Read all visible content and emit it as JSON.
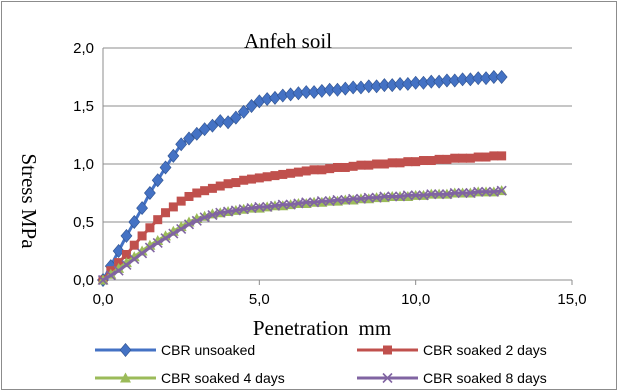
{
  "chart_data": {
    "type": "line",
    "title": "Anfeh soil",
    "xlabel_main": "Penetration",
    "xlabel_unit": "mm",
    "ylabel": "Stress MPa",
    "xlim": [
      0,
      15
    ],
    "ylim": [
      0,
      2
    ],
    "xticks": [
      "0,0",
      "5,0",
      "10,0",
      "15,0"
    ],
    "xtick_values": [
      0,
      5,
      10,
      15
    ],
    "yticks": [
      "0,0",
      "0,5",
      "1,0",
      "1,5",
      "2,0"
    ],
    "ytick_values": [
      0,
      0.5,
      1,
      1.5,
      2
    ],
    "grid": "horizontal",
    "legend_position": "bottom",
    "series": [
      {
        "name": "CBR unsoaked",
        "color": "#4472c4",
        "marker": "diamond",
        "x": [
          0,
          0.25,
          0.5,
          0.75,
          1.0,
          1.25,
          1.5,
          1.75,
          2.0,
          2.25,
          2.5,
          2.75,
          3.0,
          3.25,
          3.5,
          3.75,
          4.0,
          4.25,
          4.5,
          4.75,
          5.0,
          5.25,
          5.5,
          5.75,
          6.0,
          6.25,
          6.5,
          6.75,
          7.0,
          7.25,
          7.5,
          7.75,
          8.0,
          8.25,
          8.5,
          8.75,
          9.0,
          9.25,
          9.5,
          9.75,
          10.0,
          10.25,
          10.5,
          10.75,
          11.0,
          11.25,
          11.5,
          11.75,
          12.0,
          12.25,
          12.5,
          12.75
        ],
        "y": [
          0.0,
          0.12,
          0.25,
          0.38,
          0.5,
          0.62,
          0.75,
          0.86,
          0.97,
          1.07,
          1.17,
          1.22,
          1.26,
          1.3,
          1.33,
          1.37,
          1.36,
          1.4,
          1.45,
          1.5,
          1.54,
          1.56,
          1.57,
          1.59,
          1.6,
          1.61,
          1.62,
          1.62,
          1.63,
          1.64,
          1.64,
          1.65,
          1.66,
          1.66,
          1.67,
          1.67,
          1.68,
          1.68,
          1.69,
          1.69,
          1.7,
          1.7,
          1.71,
          1.71,
          1.72,
          1.72,
          1.73,
          1.73,
          1.74,
          1.74,
          1.75,
          1.75
        ]
      },
      {
        "name": "CBR soaked 2 days",
        "color": "#c0504d",
        "marker": "square",
        "x": [
          0,
          0.25,
          0.5,
          0.75,
          1.0,
          1.25,
          1.5,
          1.75,
          2.0,
          2.25,
          2.5,
          2.75,
          3.0,
          3.25,
          3.5,
          3.75,
          4.0,
          4.25,
          4.5,
          4.75,
          5.0,
          5.25,
          5.5,
          5.75,
          6.0,
          6.25,
          6.5,
          6.75,
          7.0,
          7.25,
          7.5,
          7.75,
          8.0,
          8.25,
          8.5,
          8.75,
          9.0,
          9.25,
          9.5,
          9.75,
          10.0,
          10.25,
          10.5,
          10.75,
          11.0,
          11.25,
          11.5,
          11.75,
          12.0,
          12.25,
          12.5,
          12.75
        ],
        "y": [
          0.0,
          0.08,
          0.15,
          0.22,
          0.3,
          0.38,
          0.45,
          0.52,
          0.58,
          0.63,
          0.68,
          0.72,
          0.75,
          0.77,
          0.79,
          0.81,
          0.83,
          0.84,
          0.86,
          0.87,
          0.88,
          0.89,
          0.9,
          0.91,
          0.92,
          0.93,
          0.94,
          0.95,
          0.95,
          0.96,
          0.97,
          0.97,
          0.98,
          0.99,
          0.99,
          1.0,
          1.0,
          1.01,
          1.01,
          1.02,
          1.02,
          1.03,
          1.03,
          1.04,
          1.04,
          1.05,
          1.05,
          1.05,
          1.06,
          1.06,
          1.07,
          1.07
        ]
      },
      {
        "name": "CBR soaked 4 days",
        "color": "#9bbb59",
        "marker": "triangle",
        "x": [
          0,
          0.25,
          0.5,
          0.75,
          1.0,
          1.25,
          1.5,
          1.75,
          2.0,
          2.25,
          2.5,
          2.75,
          3.0,
          3.25,
          3.5,
          3.75,
          4.0,
          4.25,
          4.5,
          4.75,
          5.0,
          5.25,
          5.5,
          5.75,
          6.0,
          6.25,
          6.5,
          6.75,
          7.0,
          7.25,
          7.5,
          7.75,
          8.0,
          8.25,
          8.5,
          8.75,
          9.0,
          9.25,
          9.5,
          9.75,
          10.0,
          10.25,
          10.5,
          10.75,
          11.0,
          11.25,
          11.5,
          11.75,
          12.0,
          12.25,
          12.5,
          12.75
        ],
        "y": [
          0.0,
          0.05,
          0.1,
          0.15,
          0.2,
          0.25,
          0.3,
          0.34,
          0.38,
          0.42,
          0.46,
          0.5,
          0.53,
          0.55,
          0.57,
          0.58,
          0.59,
          0.6,
          0.61,
          0.62,
          0.62,
          0.63,
          0.64,
          0.64,
          0.65,
          0.66,
          0.66,
          0.67,
          0.67,
          0.68,
          0.68,
          0.69,
          0.69,
          0.7,
          0.7,
          0.71,
          0.71,
          0.72,
          0.72,
          0.72,
          0.73,
          0.73,
          0.74,
          0.74,
          0.74,
          0.75,
          0.75,
          0.75,
          0.76,
          0.76,
          0.76,
          0.77
        ]
      },
      {
        "name": "CBR soaked 8 days",
        "color": "#8064a2",
        "marker": "x",
        "x": [
          0,
          0.25,
          0.5,
          0.75,
          1.0,
          1.25,
          1.5,
          1.75,
          2.0,
          2.25,
          2.5,
          2.75,
          3.0,
          3.25,
          3.5,
          3.75,
          4.0,
          4.25,
          4.5,
          4.75,
          5.0,
          5.25,
          5.5,
          5.75,
          6.0,
          6.25,
          6.5,
          6.75,
          7.0,
          7.25,
          7.5,
          7.75,
          8.0,
          8.25,
          8.5,
          8.75,
          9.0,
          9.25,
          9.5,
          9.75,
          10.0,
          10.25,
          10.5,
          10.75,
          11.0,
          11.25,
          11.5,
          11.75,
          12.0,
          12.25,
          12.5,
          12.75
        ],
        "y": [
          0.0,
          0.04,
          0.08,
          0.13,
          0.18,
          0.23,
          0.28,
          0.32,
          0.36,
          0.4,
          0.44,
          0.48,
          0.51,
          0.54,
          0.56,
          0.58,
          0.59,
          0.6,
          0.61,
          0.62,
          0.63,
          0.63,
          0.64,
          0.65,
          0.65,
          0.66,
          0.67,
          0.67,
          0.68,
          0.68,
          0.69,
          0.69,
          0.7,
          0.7,
          0.71,
          0.71,
          0.72,
          0.72,
          0.72,
          0.73,
          0.73,
          0.73,
          0.74,
          0.74,
          0.74,
          0.75,
          0.75,
          0.75,
          0.76,
          0.76,
          0.76,
          0.77
        ]
      }
    ]
  }
}
